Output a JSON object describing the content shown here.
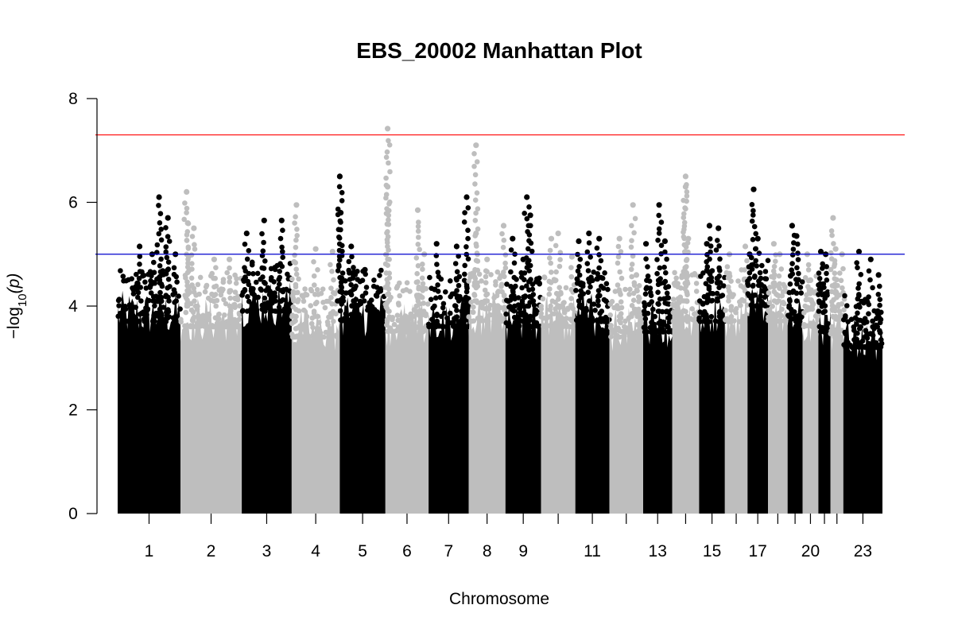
{
  "chart_data": {
    "type": "scatter",
    "title": "EBS_20002 Manhattan Plot",
    "xlabel": "Chromosome",
    "ylabel": "−log10(p)",
    "ylabel_parts": {
      "prefix": "−log",
      "sub": "10",
      "arg": "(p)"
    },
    "ylim": [
      0,
      8
    ],
    "yticks": [
      0,
      2,
      4,
      6,
      8
    ],
    "grid": false,
    "legend": "none",
    "colors": {
      "odd": "#000000",
      "even": "#bebebe",
      "suggestive_line": "#0000cd",
      "genomewide_line": "#ff0000"
    },
    "thresholds": {
      "suggestive": 5.0,
      "genomewide": 7.3
    },
    "chromosomes": [
      {
        "chr": 1,
        "label": "1",
        "len": 249,
        "base": 4.3,
        "peaks": [
          [
            0.35,
            5.15
          ],
          [
            0.55,
            5.0
          ],
          [
            0.66,
            6.1
          ],
          [
            0.8,
            5.7
          ],
          [
            0.92,
            5.0
          ]
        ]
      },
      {
        "chr": 2,
        "label": "2",
        "len": 243,
        "base": 4.2,
        "peaks": [
          [
            0.1,
            6.2
          ],
          [
            0.12,
            5.6
          ],
          [
            0.22,
            5.5
          ],
          [
            0.55,
            4.9
          ],
          [
            0.8,
            4.9
          ]
        ]
      },
      {
        "chr": 3,
        "label": "3",
        "len": 198,
        "base": 4.5,
        "peaks": [
          [
            0.1,
            5.4
          ],
          [
            0.45,
            5.65
          ],
          [
            0.8,
            5.65
          ]
        ]
      },
      {
        "chr": 4,
        "label": "4",
        "len": 191,
        "base": 4.0,
        "peaks": [
          [
            0.05,
            4.85
          ],
          [
            0.1,
            5.95
          ],
          [
            0.5,
            5.1
          ],
          [
            0.85,
            5.05
          ]
        ]
      },
      {
        "chr": 5,
        "label": "5",
        "len": 181,
        "base": 4.3,
        "peaks": [
          [
            0.0,
            6.5
          ],
          [
            0.02,
            5.8
          ],
          [
            0.25,
            5.15
          ],
          [
            0.55,
            4.7
          ]
        ]
      },
      {
        "chr": 6,
        "label": "6",
        "len": 171,
        "base": 4.1,
        "peaks": [
          [
            0.05,
            7.42
          ],
          [
            0.05,
            6.3
          ],
          [
            0.75,
            5.85
          ],
          [
            0.9,
            5.0
          ]
        ]
      },
      {
        "chr": 7,
        "label": "7",
        "len": 159,
        "base": 4.2,
        "peaks": [
          [
            0.2,
            5.2
          ],
          [
            0.7,
            5.15
          ],
          [
            0.95,
            6.1
          ]
        ]
      },
      {
        "chr": 8,
        "label": "8",
        "len": 146,
        "base": 4.3,
        "peaks": [
          [
            0.2,
            7.1
          ],
          [
            0.2,
            5.4
          ],
          [
            0.5,
            4.9
          ],
          [
            0.95,
            5.55
          ]
        ]
      },
      {
        "chr": 9,
        "label": "9",
        "len": 141,
        "base": 4.2,
        "peaks": [
          [
            0.2,
            5.3
          ],
          [
            0.6,
            6.1
          ],
          [
            0.7,
            5.75
          ],
          [
            0.5,
            4.9
          ]
        ]
      },
      {
        "chr": 10,
        "label": "",
        "len": 136,
        "base": 4.2,
        "peaks": [
          [
            0.3,
            5.3
          ],
          [
            0.5,
            5.4
          ],
          [
            0.9,
            4.95
          ]
        ]
      },
      {
        "chr": 11,
        "label": "11",
        "len": 135,
        "base": 4.3,
        "peaks": [
          [
            0.1,
            5.25
          ],
          [
            0.4,
            5.4
          ],
          [
            0.7,
            5.3
          ]
        ]
      },
      {
        "chr": 12,
        "label": "",
        "len": 134,
        "base": 4.0,
        "peaks": [
          [
            0.3,
            5.3
          ],
          [
            0.7,
            5.95
          ],
          [
            0.8,
            4.6
          ]
        ]
      },
      {
        "chr": 13,
        "label": "13",
        "len": 115,
        "base": 4.1,
        "peaks": [
          [
            0.1,
            5.2
          ],
          [
            0.55,
            5.95
          ],
          [
            0.75,
            5.25
          ]
        ]
      },
      {
        "chr": 14,
        "label": "",
        "len": 107,
        "base": 4.3,
        "peaks": [
          [
            0.5,
            6.5
          ],
          [
            0.5,
            6.3
          ],
          [
            0.6,
            5.3
          ]
        ]
      },
      {
        "chr": 15,
        "label": "15",
        "len": 102,
        "base": 4.3,
        "peaks": [
          [
            0.4,
            5.55
          ],
          [
            0.75,
            5.5
          ],
          [
            0.3,
            5.2
          ]
        ]
      },
      {
        "chr": 16,
        "label": "",
        "len": 90,
        "base": 4.3,
        "peaks": [
          [
            0.2,
            5.0
          ],
          [
            0.9,
            5.15
          ]
        ]
      },
      {
        "chr": 17,
        "label": "17",
        "len": 81,
        "base": 4.6,
        "peaks": [
          [
            0.3,
            6.25
          ],
          [
            0.5,
            5.3
          ],
          [
            0.1,
            5.0
          ]
        ]
      },
      {
        "chr": 18,
        "label": "",
        "len": 78,
        "base": 4.3,
        "peaks": [
          [
            0.3,
            5.2
          ],
          [
            0.6,
            5.0
          ]
        ]
      },
      {
        "chr": 19,
        "label": "",
        "len": 59,
        "base": 4.3,
        "peaks": [
          [
            0.3,
            5.55
          ],
          [
            0.6,
            5.35
          ]
        ]
      },
      {
        "chr": 20,
        "label": "20",
        "len": 63,
        "base": 4.2,
        "peaks": [
          [
            0.3,
            5.0
          ],
          [
            0.5,
            4.5
          ]
        ]
      },
      {
        "chr": 21,
        "label": "",
        "len": 48,
        "base": 4.1,
        "peaks": [
          [
            0.2,
            5.05
          ],
          [
            0.6,
            5.0
          ]
        ]
      },
      {
        "chr": 22,
        "label": "",
        "len": 51,
        "base": 4.0,
        "peaks": [
          [
            0.2,
            5.7
          ],
          [
            0.4,
            5.1
          ],
          [
            0.9,
            5.0
          ]
        ]
      },
      {
        "chr": 23,
        "label": "23",
        "len": 155,
        "base": 3.8,
        "peaks": [
          [
            0.4,
            5.05
          ],
          [
            0.7,
            4.9
          ],
          [
            0.9,
            4.6
          ]
        ]
      }
    ]
  }
}
